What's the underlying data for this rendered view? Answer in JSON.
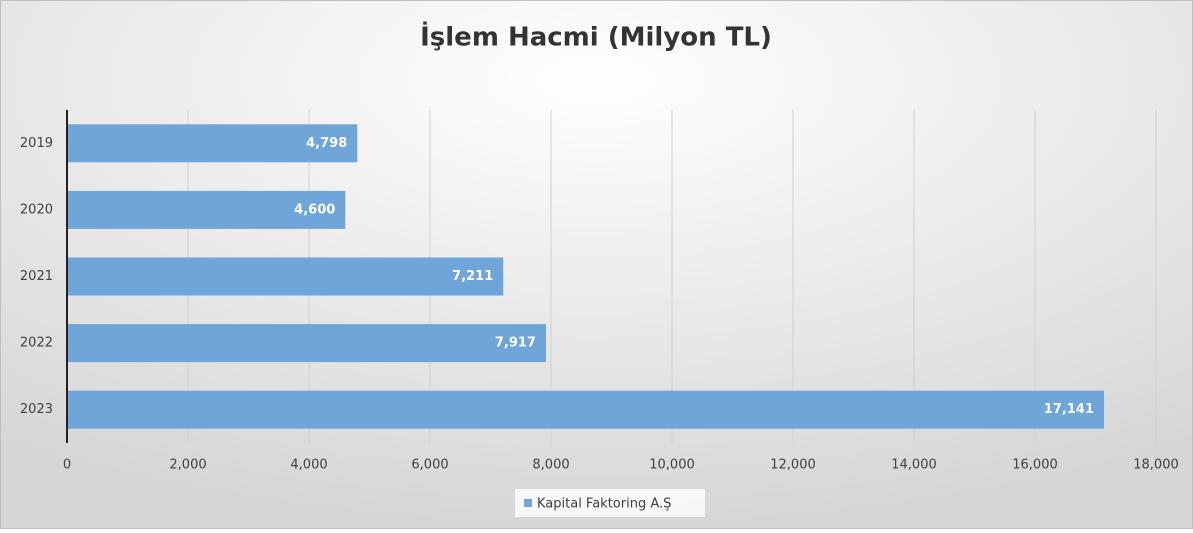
{
  "chart_data": {
    "type": "bar",
    "orientation": "horizontal",
    "title": "İşlem Hacmi (Milyon TL)",
    "categories": [
      "2019",
      "2020",
      "2021",
      "2022",
      "2023"
    ],
    "series": [
      {
        "name": "Kapital Faktoring A.Ş",
        "color": "#6fa5d9",
        "values": [
          4798,
          4600,
          7211,
          7917,
          17141
        ],
        "value_labels": [
          "4,798",
          "4,600",
          "7,211",
          "7,917",
          "17,141"
        ]
      }
    ],
    "xlim": [
      0,
      18000
    ],
    "xticks": [
      0,
      {
        "value": 2000,
        "label": "2,000"
      },
      {
        "value": 4000,
        "label": "4,000"
      },
      {
        "value": 6000,
        "label": "6,000"
      },
      {
        "value": 8000,
        "label": "8,000"
      },
      {
        "value": 10000,
        "label": "10,000"
      },
      {
        "value": 12000,
        "label": "12,000"
      },
      {
        "value": 14000,
        "label": "14,000"
      },
      {
        "value": 16000,
        "label": "16,000"
      },
      {
        "value": 18000,
        "label": "18,000"
      }
    ],
    "grid": true,
    "legend": "bottom"
  }
}
